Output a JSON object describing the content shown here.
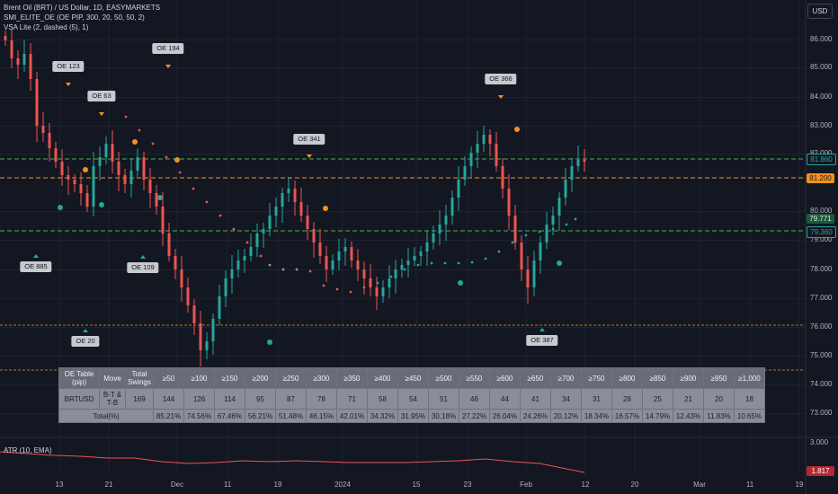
{
  "legend": {
    "title": "Brent Oil (BRT) / US Dollar, 1D, EASYMARKETS",
    "indicator1": "SMI_ELITE_OE (OE PIP, 300, 20, 50, 50, 2)",
    "indicator2": "VSA Lite (2, dashed (5), 1)"
  },
  "currency": "USD",
  "y_axis": [
    "86.000",
    "85.000",
    "84.000",
    "83.000",
    "82.000",
    "80.000",
    "79.000",
    "78.000",
    "77.000",
    "76.000",
    "75.000",
    "74.000",
    "73.000"
  ],
  "price_tags": {
    "green_top": "81.860",
    "orange": "81.200",
    "green_dark": "79.771",
    "green_mid": "79.360",
    "atr_top": "3.000",
    "atr_value": "1.817"
  },
  "x_axis": [
    "13",
    "21",
    "Dec",
    "11",
    "19",
    "2024",
    "15",
    "23",
    "Feb",
    "12",
    "20",
    "Mar",
    "11",
    "19"
  ],
  "oe_labels": [
    "OE 123",
    "OE 194",
    "OE 63",
    "OE 341",
    "OE 366",
    "OE 885",
    "OE 109",
    "OE 20",
    "OE 387"
  ],
  "atr_label": "ATR (10, EMA)",
  "table": {
    "headers": [
      "OE Table (pip)",
      "Move",
      "Total Swings",
      "≥50",
      "≥100",
      "≥150",
      "≥200",
      "≥250",
      "≥300",
      "≥350",
      "≥400",
      "≥450",
      "≥500",
      "≥550",
      "≥600",
      "≥650",
      "≥700",
      "≥750",
      "≥800",
      "≥850",
      "≥900",
      "≥950",
      "≥1,000"
    ],
    "row_symbol": "BRTUSD",
    "row_move": "B-T & T-B",
    "row_swings": "169",
    "counts": [
      "144",
      "126",
      "114",
      "95",
      "87",
      "78",
      "71",
      "58",
      "54",
      "51",
      "46",
      "44",
      "41",
      "34",
      "31",
      "28",
      "25",
      "21",
      "20",
      "18"
    ],
    "total_label": "Total(%)",
    "percents": [
      "85.21%",
      "74.56%",
      "67.46%",
      "56.21%",
      "51.48%",
      "46.15%",
      "42.01%",
      "34.32%",
      "31.95%",
      "30.18%",
      "27.22%",
      "26.04%",
      "24.26%",
      "20.12%",
      "18.34%",
      "16.57%",
      "14.79%",
      "12.43%",
      "11.83%",
      "10.65%"
    ]
  },
  "colors": {
    "up": "#26a69a",
    "down": "#ef5350",
    "bg": "#131722",
    "orange": "#f7931a",
    "green_line": "#4caf50"
  }
}
